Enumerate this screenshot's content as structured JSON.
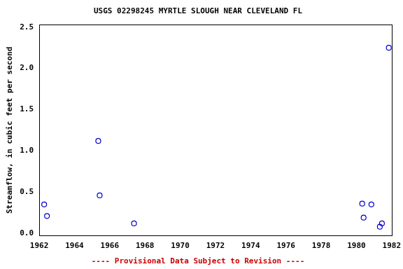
{
  "chart_data": {
    "type": "scatter",
    "title": "USGS 02298245 MYRTLE SLOUGH NEAR CLEVELAND FL",
    "y_label": "Streamflow, in cubic feet per second",
    "annotation": "---- Provisional Data Subject to Revision ----",
    "x": [
      1962.28,
      1962.44,
      1965.35,
      1965.43,
      1967.38,
      1980.33,
      1980.41,
      1980.85,
      1981.33,
      1981.45,
      1981.84
    ],
    "values": [
      0.35,
      0.21,
      1.12,
      0.46,
      0.12,
      0.36,
      0.19,
      0.35,
      0.08,
      0.12,
      2.25
    ],
    "color": "#0000cc",
    "marker": "circle",
    "xlim": [
      1962,
      1982
    ],
    "xticks": [
      1962,
      1964,
      1966,
      1968,
      1970,
      1972,
      1974,
      1976,
      1978,
      1980,
      1982
    ],
    "ylim": [
      -0.03,
      2.53
    ],
    "yticks": [
      {
        "value": 0,
        "label": "0.0"
      },
      0.5,
      {
        "value": 1,
        "label": "1.0"
      },
      1.5,
      {
        "value": 2,
        "label": "2.0"
      },
      2.5
    ],
    "grid": false
  }
}
